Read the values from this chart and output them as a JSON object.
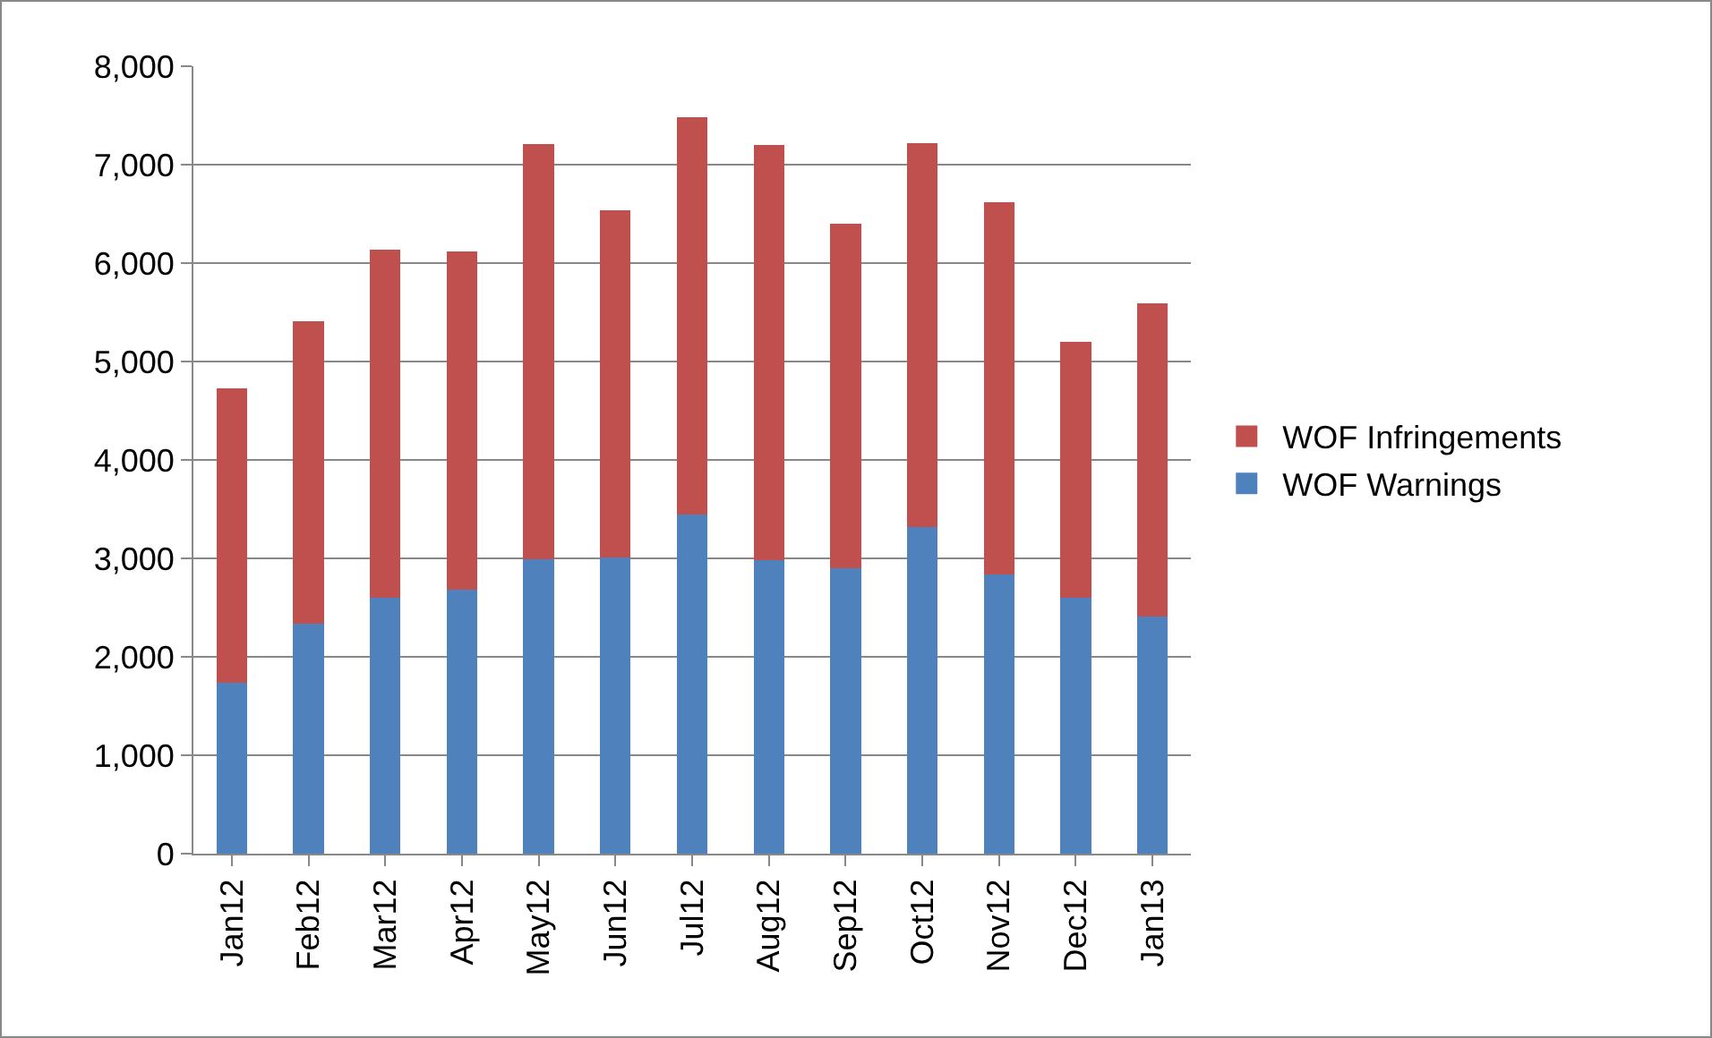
{
  "chart_data": {
    "type": "bar",
    "stacked": true,
    "categories": [
      "Jan12",
      "Feb12",
      "Mar12",
      "Apr12",
      "May12",
      "Jun12",
      "Jul12",
      "Aug12",
      "Sep12",
      "Oct12",
      "Nov12",
      "Dec12",
      "Jan13"
    ],
    "series": [
      {
        "name": "WOF Warnings",
        "color": "#4f81bd",
        "values": [
          1740,
          2340,
          2600,
          2680,
          2990,
          3010,
          3450,
          2980,
          2900,
          3320,
          2840,
          2600,
          2410
        ]
      },
      {
        "name": "WOF Infringements",
        "color": "#c0504d",
        "values": [
          2990,
          3070,
          3540,
          3440,
          4220,
          3530,
          4030,
          4220,
          3500,
          3900,
          3780,
          2600,
          3180
        ]
      }
    ],
    "ylim": [
      0,
      8000
    ],
    "yticks": [
      {
        "value": 0,
        "label": "0"
      },
      {
        "value": 1000,
        "label": "1,000"
      },
      {
        "value": 2000,
        "label": "2,000"
      },
      {
        "value": 3000,
        "label": "3,000"
      },
      {
        "value": 4000,
        "label": "4,000"
      },
      {
        "value": 5000,
        "label": "5,000"
      },
      {
        "value": 6000,
        "label": "6,000"
      },
      {
        "value": 7000,
        "label": "7,000"
      },
      {
        "value": 8000,
        "label": "8,000"
      }
    ],
    "grid": "y",
    "legend": "right"
  }
}
